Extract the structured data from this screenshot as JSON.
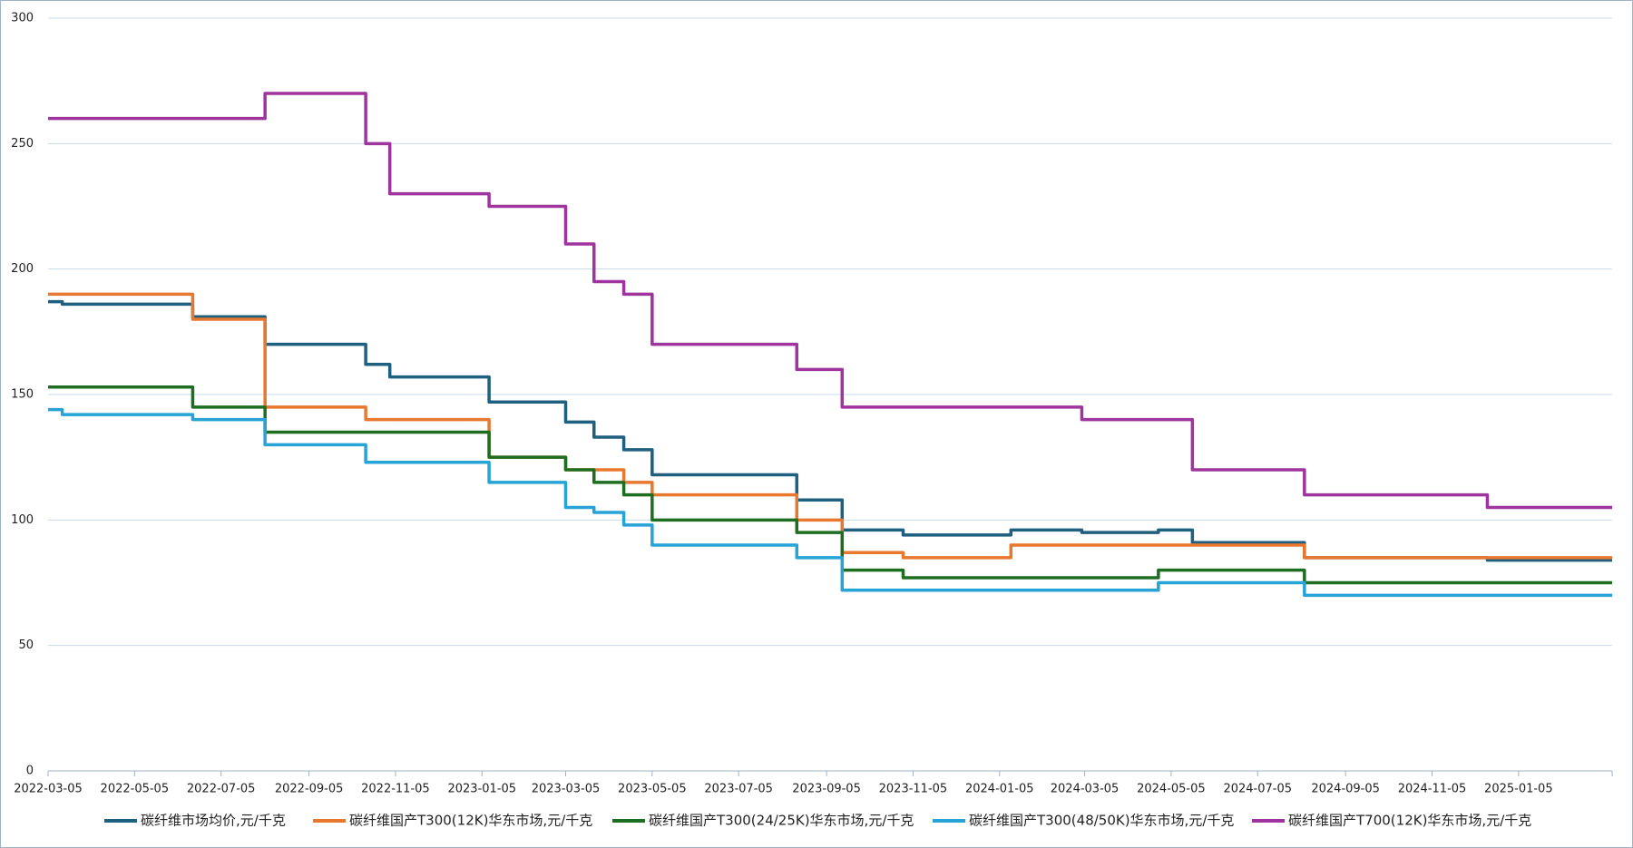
{
  "chart_data": {
    "type": "step-line",
    "x": [
      "2022-03-05",
      "2022-03-15",
      "2022-06-15",
      "2022-08-05",
      "2022-10-15",
      "2022-11-01",
      "2023-01-10",
      "2023-03-05",
      "2023-03-25",
      "2023-04-15",
      "2023-05-05",
      "2023-08-15",
      "2023-09-16",
      "2023-10-29",
      "2024-01-13",
      "2024-03-03",
      "2024-04-26",
      "2024-05-20",
      "2024-08-07",
      "2024-12-14",
      "2025-03-12"
    ],
    "series": [
      {
        "name": "碳纤维市场均价,元/千克",
        "color": "#1f5f80",
        "values": [
          187,
          186,
          181,
          170,
          162,
          157,
          147,
          139,
          133,
          128,
          118,
          108,
          96,
          94,
          96,
          95,
          96,
          91,
          85,
          84,
          84
        ]
      },
      {
        "name": "碳纤维国产T300(12K)华东市场,元/千克",
        "color": "#e8782f",
        "values": [
          190,
          190,
          180,
          145,
          140,
          140,
          125,
          120,
          120,
          115,
          110,
          100,
          87,
          85,
          90,
          90,
          90,
          90,
          85,
          85,
          85
        ]
      },
      {
        "name": "碳纤维国产T300(24/25K)华东市场,元/千克",
        "color": "#1e6e22",
        "values": [
          153,
          153,
          145,
          135,
          135,
          135,
          125,
          120,
          115,
          110,
          100,
          95,
          80,
          77,
          77,
          77,
          80,
          80,
          75,
          75,
          75
        ]
      },
      {
        "name": "碳纤维国产T300(48/50K)华东市场,元/千克",
        "color": "#27a3d6",
        "values": [
          144,
          142,
          140,
          130,
          123,
          123,
          115,
          105,
          103,
          98,
          90,
          85,
          72,
          72,
          72,
          72,
          75,
          75,
          70,
          70,
          70
        ]
      },
      {
        "name": "碳纤维国产T700(12K)华东市场,元/千克",
        "color": "#a0349e",
        "values": [
          260,
          260,
          260,
          270,
          250,
          230,
          225,
          210,
          195,
          190,
          170,
          160,
          145,
          145,
          145,
          140,
          140,
          120,
          110,
          105,
          105
        ]
      }
    ],
    "xlim": [
      "2022-03-05",
      "2025-03-12"
    ],
    "xticks": [
      "2022-03-05",
      "2022-05-05",
      "2022-07-05",
      "2022-09-05",
      "2022-11-05",
      "2023-01-05",
      "2023-03-05",
      "2023-05-05",
      "2023-07-05",
      "2023-09-05",
      "2023-11-05",
      "2024-01-05",
      "2024-03-05",
      "2024-05-05",
      "2024-07-05",
      "2024-09-05",
      "2024-11-05",
      "2025-01-05"
    ],
    "ylim": [
      0,
      300
    ],
    "yticks": [
      0,
      50,
      100,
      150,
      200,
      250,
      300
    ],
    "grid": true
  }
}
